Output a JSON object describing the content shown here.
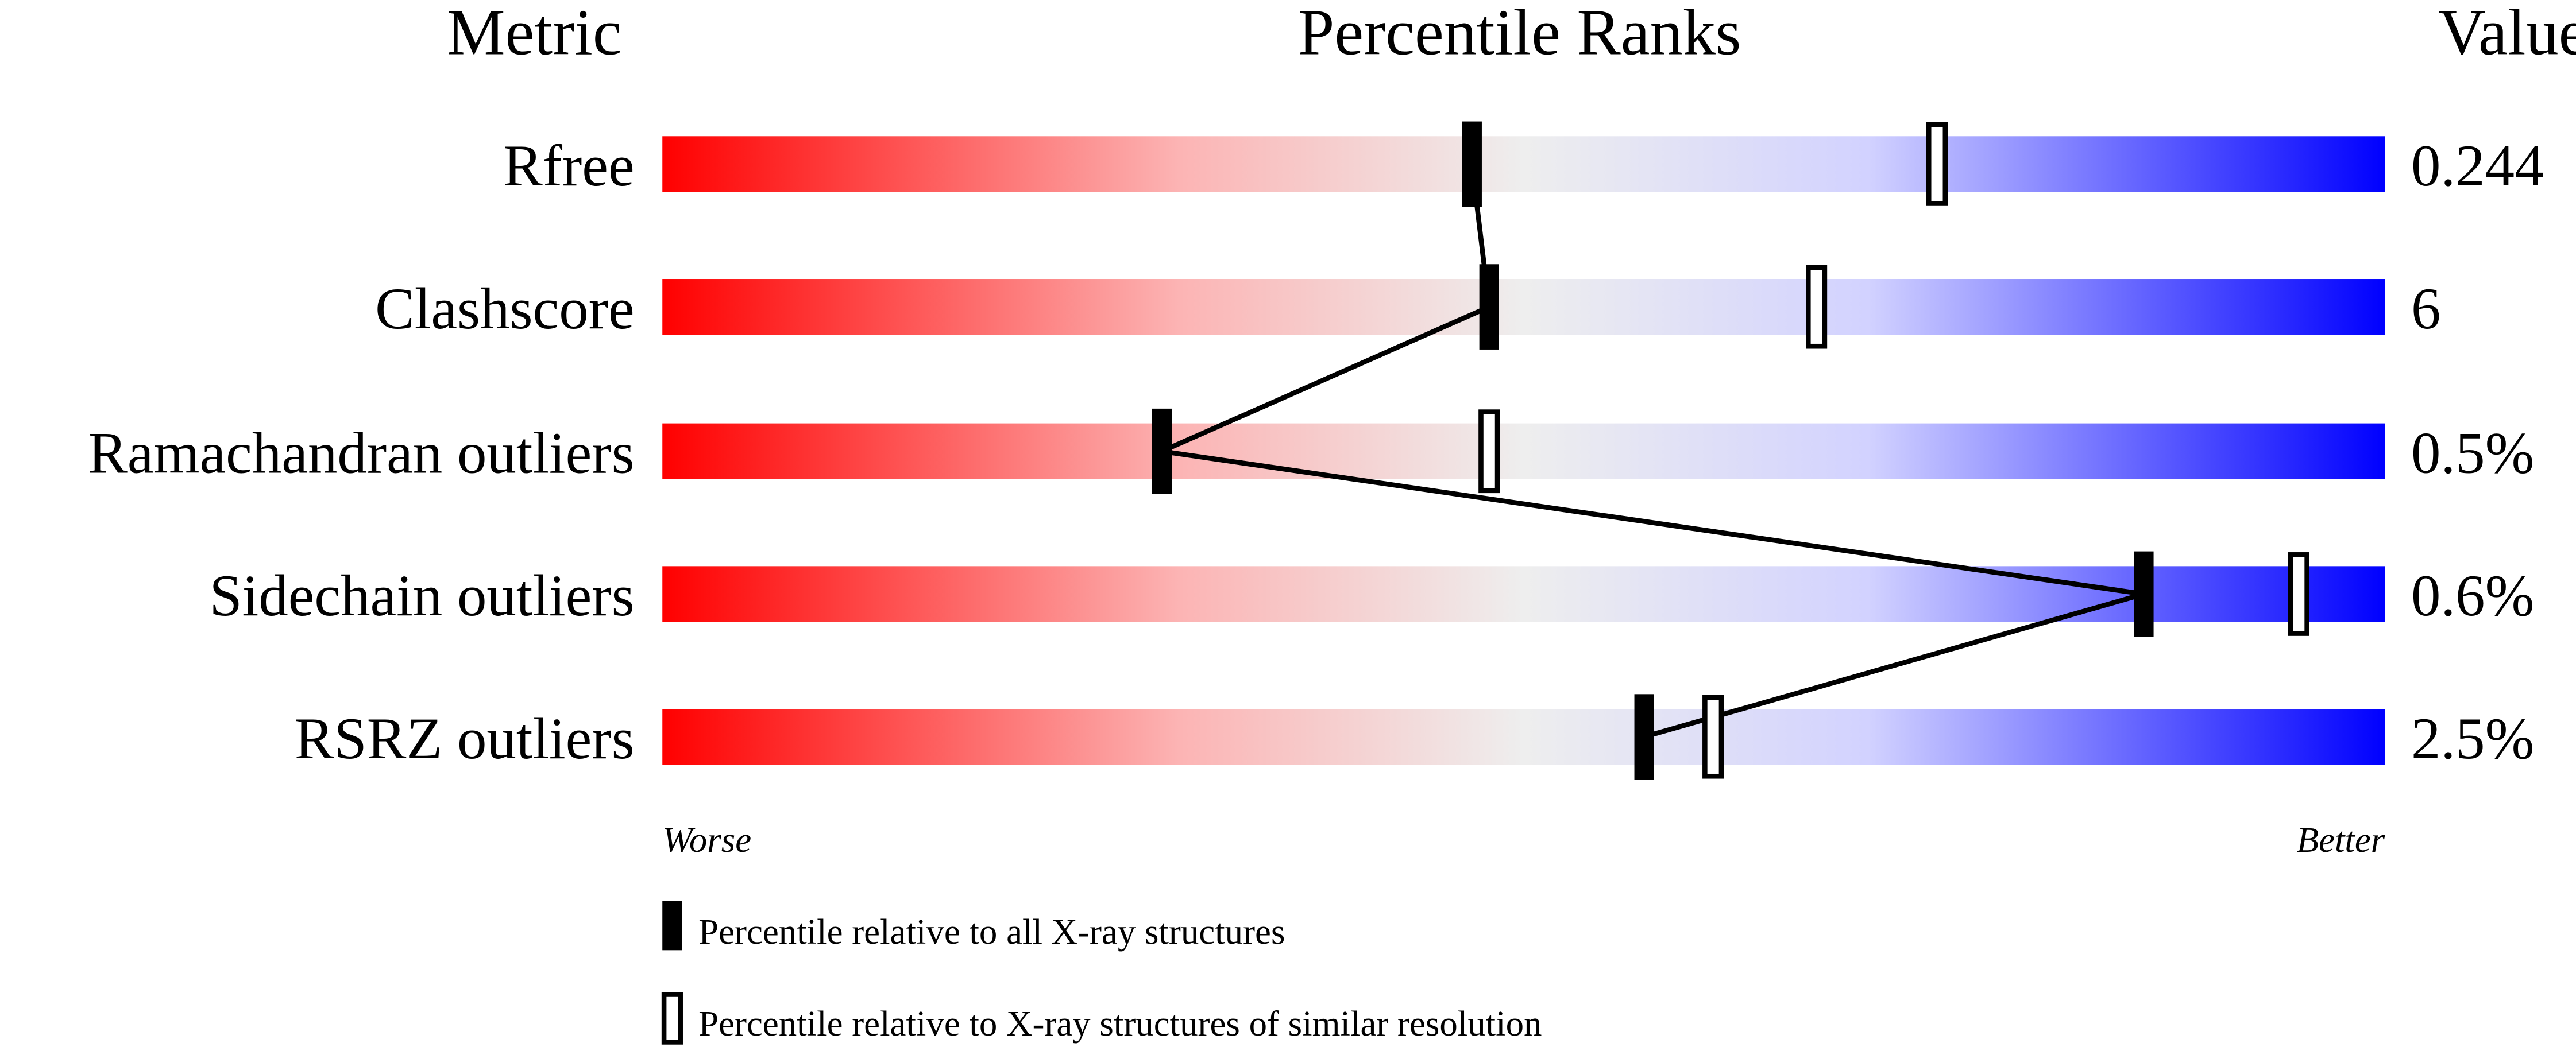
{
  "chart_data": {
    "type": "percentile-bar",
    "headers": {
      "metric": "Metric",
      "ranks": "Percentile Ranks",
      "value": "Value"
    },
    "xlim": [
      0,
      100
    ],
    "axis_labels": {
      "left": "Worse",
      "right": "Better"
    },
    "gradient_colors": [
      "#ff0000",
      "#f0f0f0",
      "#0000ff"
    ],
    "metrics": [
      {
        "name": "Rfree",
        "value": "0.244",
        "percentile_all": 47,
        "percentile_similar": 74
      },
      {
        "name": "Clashscore",
        "value": "6",
        "percentile_all": 48,
        "percentile_similar": 67
      },
      {
        "name": "Ramachandran outliers",
        "value": "0.5%",
        "percentile_all": 29,
        "percentile_similar": 48
      },
      {
        "name": "Sidechain outliers",
        "value": "0.6%",
        "percentile_all": 86,
        "percentile_similar": 95
      },
      {
        "name": "RSRZ outliers",
        "value": "2.5%",
        "percentile_all": 57,
        "percentile_similar": 61
      }
    ],
    "legend": [
      {
        "marker": "filled",
        "label": "Percentile relative to all X-ray structures"
      },
      {
        "marker": "open",
        "label": "Percentile relative to X-ray structures of similar resolution"
      }
    ]
  }
}
